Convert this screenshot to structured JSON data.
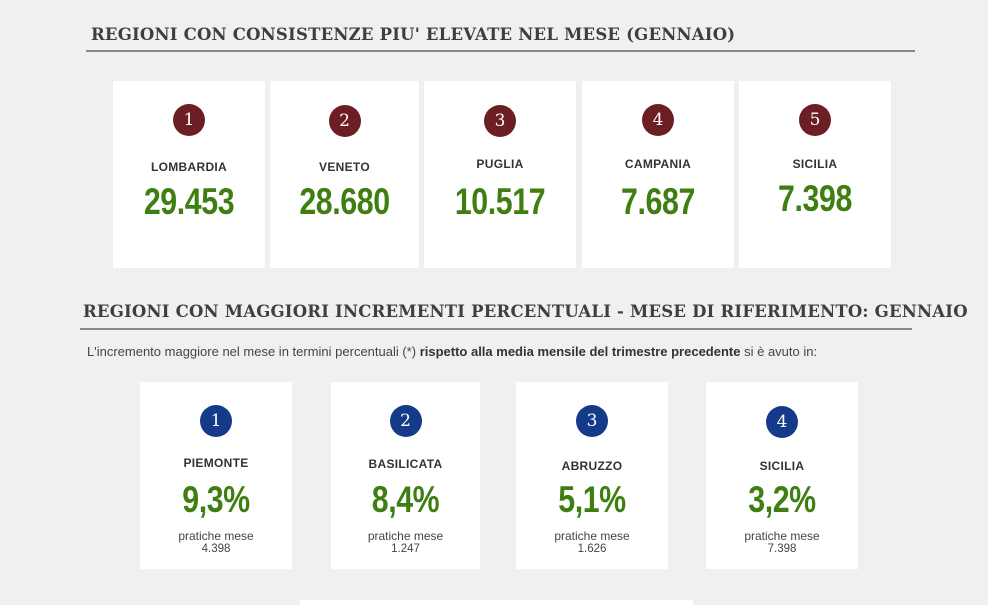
{
  "section1": {
    "title": "REGIONI CON CONSISTENZE PIU' ELEVATE NEL MESE (GENNAIO)",
    "cards": [
      {
        "rank": "1",
        "region": "LOMBARDIA",
        "value": "29.453"
      },
      {
        "rank": "2",
        "region": "VENETO",
        "value": "28.680"
      },
      {
        "rank": "3",
        "region": "PUGLIA",
        "value": "10.517"
      },
      {
        "rank": "4",
        "region": "CAMPANIA",
        "value": "7.687"
      },
      {
        "rank": "5",
        "region": "SICILIA",
        "value": "7.398"
      }
    ]
  },
  "section2": {
    "title": "REGIONI CON MAGGIORI INCREMENTI PERCENTUALI - MESE DI RIFERIMENTO: GENNAIO",
    "intro_pre": "L'incremento maggiore nel mese in termini percentuali (*) ",
    "intro_bold": "rispetto alla media mensile del trimestre precedente",
    "intro_post": " si è avuto in:",
    "sub_label": "pratiche mese",
    "cards": [
      {
        "rank": "1",
        "region": "PIEMONTE",
        "value": "9,3%",
        "pratiche": "4.398"
      },
      {
        "rank": "2",
        "region": "BASILICATA",
        "value": "8,4%",
        "pratiche": "1.247"
      },
      {
        "rank": "3",
        "region": "ABRUZZO",
        "value": "5,1%",
        "pratiche": "1.626"
      },
      {
        "rank": "4",
        "region": "SICILIA",
        "value": "3,2%",
        "pratiche": "7.398"
      }
    ]
  },
  "colors": {
    "badge_red": "#6b1e23",
    "badge_blue": "#163a8a",
    "value_green": "#3f7f11"
  }
}
